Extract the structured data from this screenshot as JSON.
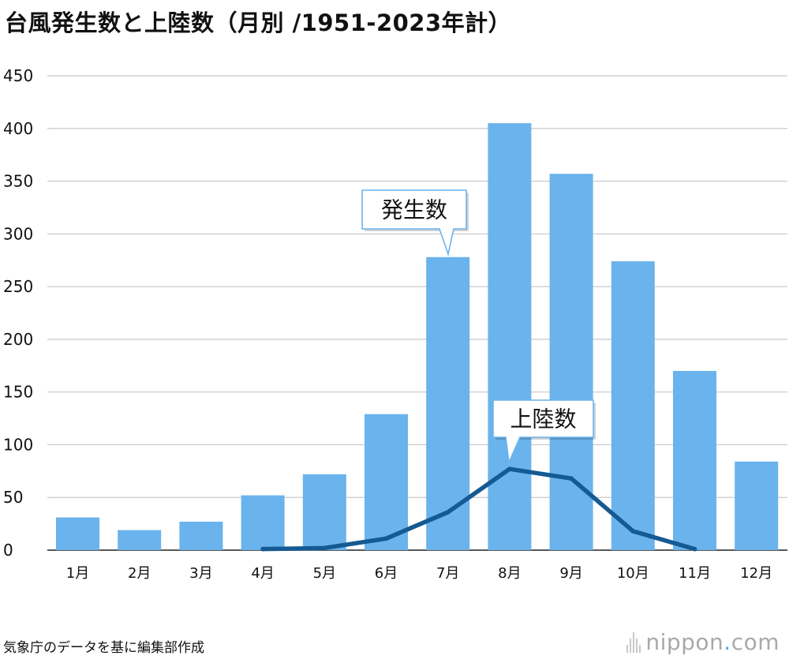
{
  "title": "台風発生数と上陸数（月別 /1951-2023年計）",
  "source": "気象庁のデータを基に編集部作成",
  "logo": {
    "name": "nippon",
    "dot": ".",
    "tld": "com"
  },
  "colors": {
    "bar": "#6ab3ec",
    "line": "#155a92",
    "grid": "#c8c8c8",
    "callout_border": "#6ab3ec"
  },
  "chart_data": {
    "type": "bar",
    "title": "台風発生数と上陸数（月別 /1951-2023年計）",
    "categories": [
      "1月",
      "2月",
      "3月",
      "4月",
      "5月",
      "6月",
      "7月",
      "8月",
      "9月",
      "10月",
      "11月",
      "12月"
    ],
    "ylim": [
      0,
      450
    ],
    "yticks": [
      0,
      50,
      100,
      150,
      200,
      250,
      300,
      350,
      400,
      450
    ],
    "grid": true,
    "series": [
      {
        "name": "発生数",
        "type": "bar",
        "values": [
          31,
          19,
          27,
          52,
          72,
          129,
          278,
          405,
          357,
          274,
          170,
          84
        ]
      },
      {
        "name": "上陸数",
        "type": "line",
        "values": [
          null,
          null,
          null,
          1,
          2,
          11,
          36,
          77,
          68,
          18,
          1,
          null
        ]
      }
    ]
  }
}
